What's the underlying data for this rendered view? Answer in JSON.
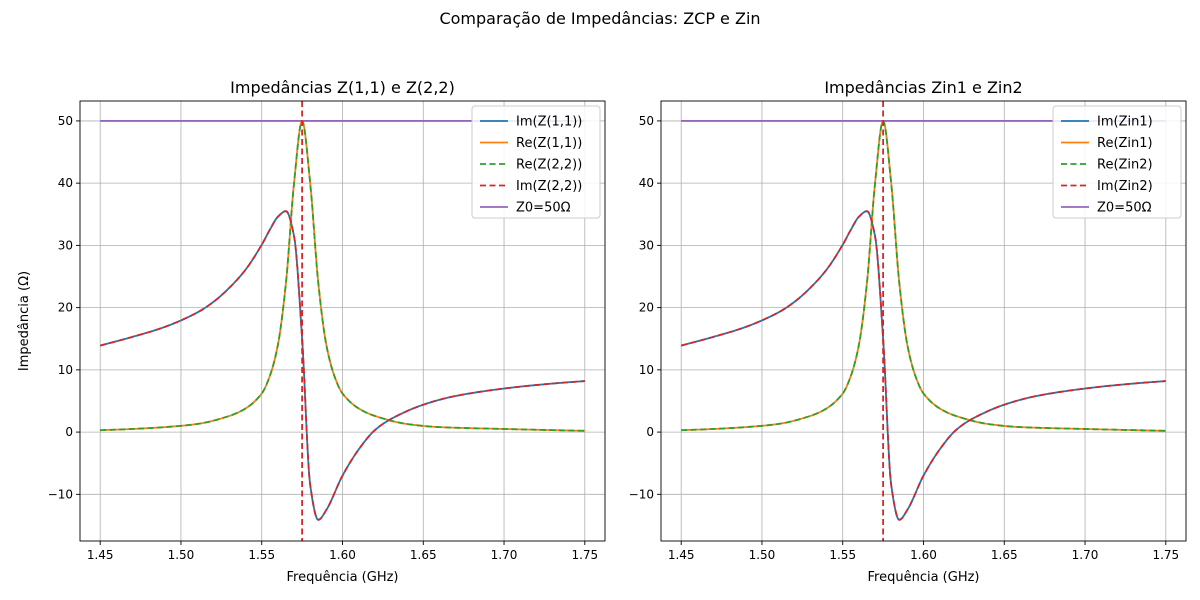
{
  "figure": {
    "suptitle": "Comparação de Impedâncias: ZCP e Zin"
  },
  "colors": {
    "blue": "#1f77b4",
    "orange": "#ff7f0e",
    "green": "#2ca02c",
    "red": "#d62728",
    "purple": "#9467bd",
    "grid": "#b0b0b0"
  },
  "chart_data": [
    {
      "type": "line",
      "title": "Impedâncias Z(1,1) e Z(2,2)",
      "xlabel": "Frequência (GHz)",
      "ylabel": "Impedância (Ω)",
      "xlim": [
        1.4375,
        1.7625
      ],
      "ylim": [
        -17.5,
        53.2
      ],
      "xticks": [
        1.45,
        1.5,
        1.55,
        1.6,
        1.65,
        1.7,
        1.75
      ],
      "xtick_labels": [
        "1.45",
        "1.50",
        "1.55",
        "1.60",
        "1.65",
        "1.70",
        "1.75"
      ],
      "yticks": [
        -10,
        0,
        10,
        20,
        30,
        40,
        50
      ],
      "ytick_labels": [
        "−10",
        "0",
        "10",
        "20",
        "30",
        "40",
        "50"
      ],
      "grid": true,
      "legend_position": "top-right",
      "vline": {
        "x": 1.575,
        "color": "#d62728",
        "style": "dashed"
      },
      "series": [
        {
          "name": "Im(Z(1,1))",
          "kind": "imag",
          "color": "#1f77b4",
          "style": "solid",
          "x": [
            1.45,
            1.47,
            1.49,
            1.51,
            1.52,
            1.53,
            1.54,
            1.55,
            1.555,
            1.56,
            1.565,
            1.57,
            1.575,
            1.58,
            1.585,
            1.59,
            1.6,
            1.61,
            1.62,
            1.63,
            1.65,
            1.67,
            1.7,
            1.73,
            1.75
          ],
          "y": [
            13.9,
            15.3,
            16.9,
            19.2,
            20.9,
            23.2,
            26.1,
            30.1,
            32.5,
            34.6,
            35.5,
            31.5,
            15,
            -8.5,
            -14.1,
            -12.5,
            -7,
            -2.8,
            0.3,
            2.1,
            4.4,
            5.8,
            7,
            7.8,
            8.2
          ]
        },
        {
          "name": "Re(Z(1,1))",
          "kind": "real",
          "color": "#ff7f0e",
          "style": "solid",
          "x": [
            1.45,
            1.47,
            1.49,
            1.51,
            1.53,
            1.54,
            1.55,
            1.555,
            1.56,
            1.565,
            1.57,
            1.575,
            1.58,
            1.585,
            1.59,
            1.595,
            1.6,
            1.61,
            1.62,
            1.64,
            1.66,
            1.7,
            1.75
          ],
          "y": [
            0.3,
            0.5,
            0.8,
            1.3,
            2.6,
            3.8,
            6.2,
            9,
            14,
            24,
            40,
            50,
            40,
            24,
            14,
            9,
            6.2,
            3.8,
            2.6,
            1.3,
            0.8,
            0.5,
            0.2
          ]
        },
        {
          "name": "Re(Z(2,2))",
          "kind": "real",
          "color": "#2ca02c",
          "style": "dashed",
          "x": [
            1.45,
            1.47,
            1.49,
            1.51,
            1.53,
            1.54,
            1.55,
            1.555,
            1.56,
            1.565,
            1.57,
            1.575,
            1.58,
            1.585,
            1.59,
            1.595,
            1.6,
            1.61,
            1.62,
            1.64,
            1.66,
            1.7,
            1.75
          ],
          "y": [
            0.3,
            0.5,
            0.8,
            1.3,
            2.6,
            3.8,
            6.2,
            9,
            14,
            24,
            40,
            50,
            40,
            24,
            14,
            9,
            6.2,
            3.8,
            2.6,
            1.3,
            0.8,
            0.5,
            0.2
          ]
        },
        {
          "name": "Im(Z(2,2))",
          "kind": "imag",
          "color": "#d62728",
          "style": "dashed",
          "x": [
            1.45,
            1.47,
            1.49,
            1.51,
            1.52,
            1.53,
            1.54,
            1.55,
            1.555,
            1.56,
            1.565,
            1.57,
            1.575,
            1.58,
            1.585,
            1.59,
            1.6,
            1.61,
            1.62,
            1.63,
            1.65,
            1.67,
            1.7,
            1.73,
            1.75
          ],
          "y": [
            13.9,
            15.3,
            16.9,
            19.2,
            20.9,
            23.2,
            26.1,
            30.1,
            32.5,
            34.6,
            35.5,
            31.5,
            15,
            -8.5,
            -14.1,
            -12.5,
            -7,
            -2.8,
            0.3,
            2.1,
            4.4,
            5.8,
            7,
            7.8,
            8.2
          ]
        },
        {
          "name": "Z0=50Ω",
          "kind": "z0",
          "color": "#9467bd",
          "style": "solid",
          "x": [
            1.45,
            1.75
          ],
          "y": [
            50,
            50
          ]
        }
      ]
    },
    {
      "type": "line",
      "title": "Impedâncias Zin1 e Zin2",
      "xlabel": "Frequência (GHz)",
      "ylabel": "",
      "xlim": [
        1.4375,
        1.7625
      ],
      "ylim": [
        -17.5,
        53.2
      ],
      "xticks": [
        1.45,
        1.5,
        1.55,
        1.6,
        1.65,
        1.7,
        1.75
      ],
      "xtick_labels": [
        "1.45",
        "1.50",
        "1.55",
        "1.60",
        "1.65",
        "1.70",
        "1.75"
      ],
      "yticks": [
        -10,
        0,
        10,
        20,
        30,
        40,
        50
      ],
      "ytick_labels": [
        "−10",
        "0",
        "10",
        "20",
        "30",
        "40",
        "50"
      ],
      "grid": true,
      "legend_position": "top-right",
      "vline": {
        "x": 1.575,
        "color": "#d62728",
        "style": "dashed"
      },
      "series": [
        {
          "name": "Im(Zin1)",
          "kind": "imag",
          "color": "#1f77b4",
          "style": "solid",
          "x": [
            1.45,
            1.47,
            1.49,
            1.51,
            1.52,
            1.53,
            1.54,
            1.55,
            1.555,
            1.56,
            1.565,
            1.57,
            1.575,
            1.58,
            1.585,
            1.59,
            1.6,
            1.61,
            1.62,
            1.63,
            1.65,
            1.67,
            1.7,
            1.73,
            1.75
          ],
          "y": [
            13.9,
            15.3,
            16.9,
            19.2,
            20.9,
            23.2,
            26.1,
            30.1,
            32.5,
            34.6,
            35.5,
            31.5,
            15,
            -8.5,
            -14.1,
            -12.5,
            -7,
            -2.8,
            0.3,
            2.1,
            4.4,
            5.8,
            7,
            7.8,
            8.2
          ]
        },
        {
          "name": "Re(Zin1)",
          "kind": "real",
          "color": "#ff7f0e",
          "style": "solid",
          "x": [
            1.45,
            1.47,
            1.49,
            1.51,
            1.53,
            1.54,
            1.55,
            1.555,
            1.56,
            1.565,
            1.57,
            1.575,
            1.58,
            1.585,
            1.59,
            1.595,
            1.6,
            1.61,
            1.62,
            1.64,
            1.66,
            1.7,
            1.75
          ],
          "y": [
            0.3,
            0.5,
            0.8,
            1.3,
            2.6,
            3.8,
            6.2,
            9,
            14,
            24,
            40,
            50,
            40,
            24,
            14,
            9,
            6.2,
            3.8,
            2.6,
            1.3,
            0.8,
            0.5,
            0.2
          ]
        },
        {
          "name": "Re(Zin2)",
          "kind": "real",
          "color": "#2ca02c",
          "style": "dashed",
          "x": [
            1.45,
            1.47,
            1.49,
            1.51,
            1.53,
            1.54,
            1.55,
            1.555,
            1.56,
            1.565,
            1.57,
            1.575,
            1.58,
            1.585,
            1.59,
            1.595,
            1.6,
            1.61,
            1.62,
            1.64,
            1.66,
            1.7,
            1.75
          ],
          "y": [
            0.3,
            0.5,
            0.8,
            1.3,
            2.6,
            3.8,
            6.2,
            9,
            14,
            24,
            40,
            50,
            40,
            24,
            14,
            9,
            6.2,
            3.8,
            2.6,
            1.3,
            0.8,
            0.5,
            0.2
          ]
        },
        {
          "name": "Im(Zin2)",
          "kind": "imag",
          "color": "#d62728",
          "style": "dashed",
          "x": [
            1.45,
            1.47,
            1.49,
            1.51,
            1.52,
            1.53,
            1.54,
            1.55,
            1.555,
            1.56,
            1.565,
            1.57,
            1.575,
            1.58,
            1.585,
            1.59,
            1.6,
            1.61,
            1.62,
            1.63,
            1.65,
            1.67,
            1.7,
            1.73,
            1.75
          ],
          "y": [
            13.9,
            15.3,
            16.9,
            19.2,
            20.9,
            23.2,
            26.1,
            30.1,
            32.5,
            34.6,
            35.5,
            31.5,
            15,
            -8.5,
            -14.1,
            -12.5,
            -7,
            -2.8,
            0.3,
            2.1,
            4.4,
            5.8,
            7,
            7.8,
            8.2
          ]
        },
        {
          "name": "Z0=50Ω",
          "kind": "z0",
          "color": "#9467bd",
          "style": "solid",
          "x": [
            1.45,
            1.75
          ],
          "y": [
            50,
            50
          ]
        }
      ]
    }
  ]
}
